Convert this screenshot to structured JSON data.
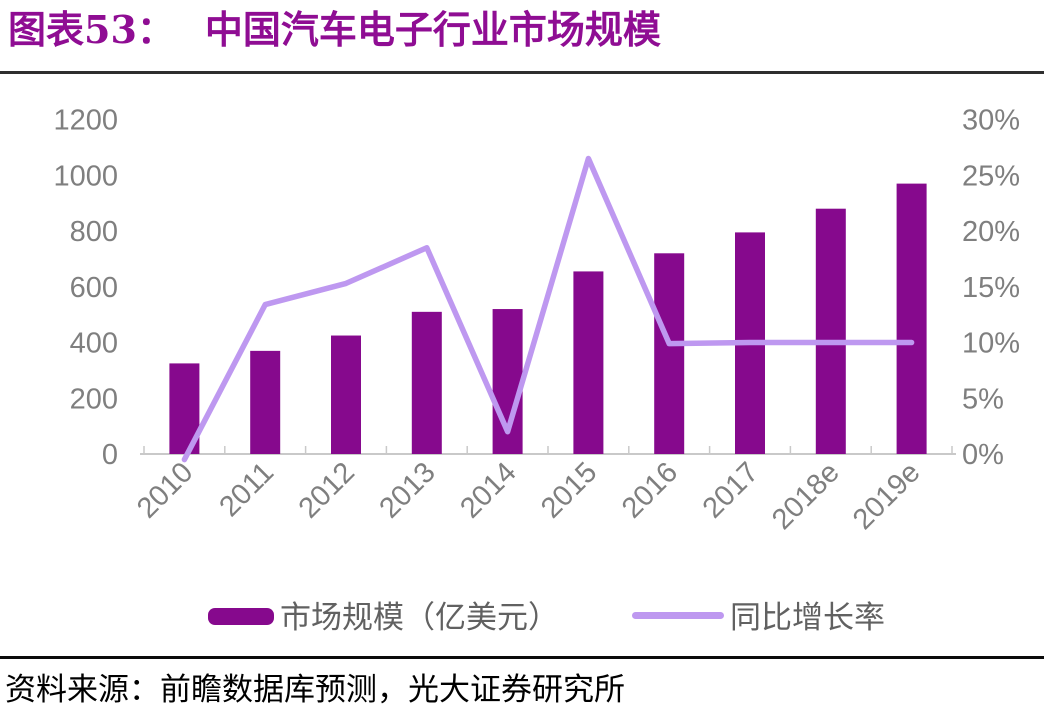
{
  "figure": {
    "label": "图表53：",
    "title": "中国汽车电子行业市场规模"
  },
  "source_line": "资料来源：前瞻数据库预测，光大证券研究所",
  "colors": {
    "title": "#8F0D93",
    "bar": "#86098D",
    "line": "#BE98F0",
    "axis_text": "#7F7F7F",
    "legend_text": "#616161",
    "axis_line": "#C9C9C9"
  },
  "legend": {
    "items": [
      {
        "label": "市场规模（亿美元）",
        "marker": "bar"
      },
      {
        "label": "同比增长率",
        "marker": "line"
      }
    ]
  },
  "chart_data": {
    "type": "combo-bar-line",
    "title": "中国汽车电子行业市场规模",
    "categories": [
      "2010",
      "2011",
      "2012",
      "2013",
      "2014",
      "2015",
      "2016",
      "2017",
      "2018e",
      "2019e"
    ],
    "series": [
      {
        "name": "市场规模（亿美元）",
        "type": "bar",
        "axis": "left",
        "color": "#86098D",
        "values": [
          325,
          370,
          425,
          510,
          520,
          655,
          720,
          795,
          880,
          970
        ]
      },
      {
        "name": "同比增长率",
        "type": "line",
        "axis": "right",
        "color": "#BE98F0",
        "values": [
          -0.5,
          13.4,
          15.3,
          18.5,
          2.0,
          26.5,
          9.9,
          10.0,
          10.0,
          10.0
        ]
      }
    ],
    "left_axis": {
      "min": 0,
      "max": 1200,
      "tick_step": 200,
      "ticks": [
        "0",
        "200",
        "400",
        "600",
        "800",
        "1000",
        "1200"
      ]
    },
    "right_axis": {
      "min": 0,
      "max": 30,
      "tick_step": 5,
      "ticks": [
        "0%",
        "5%",
        "10%",
        "15%",
        "20%",
        "25%",
        "30%"
      ]
    },
    "grid": false,
    "legend_position": "bottom"
  }
}
